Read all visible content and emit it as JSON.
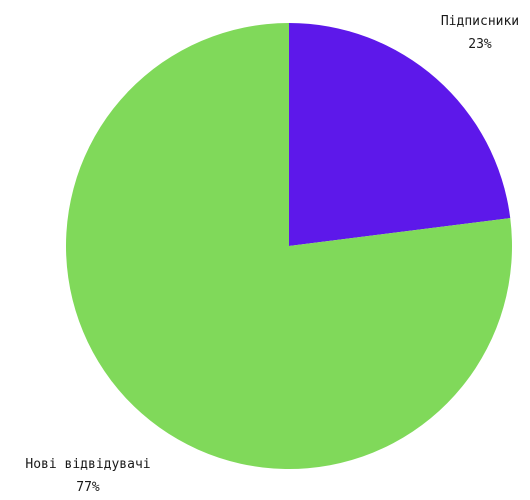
{
  "chart_data": {
    "type": "pie",
    "title": "",
    "start_angle_deg": 0,
    "direction": "clockwise",
    "slices": [
      {
        "label": "Підписники",
        "value": 23,
        "value_label": "23%",
        "color": "#5d18ea"
      },
      {
        "label": "Нові відвідувачі",
        "value": 77,
        "value_label": "77%",
        "color": "#80d95a"
      }
    ]
  }
}
